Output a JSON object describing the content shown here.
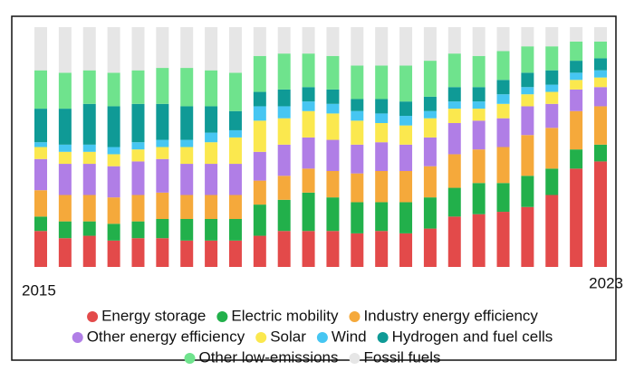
{
  "chart_data": {
    "type": "stacked_bar",
    "categories": [
      "2015",
      null,
      null,
      null,
      null,
      null,
      null,
      null,
      null,
      null,
      null,
      null,
      null,
      null,
      null,
      null,
      null,
      null,
      null,
      null,
      null,
      null,
      null,
      "2023"
    ],
    "series": [
      {
        "name": "Energy storage",
        "color": "#e34a4a",
        "values": [
          15,
          12,
          13,
          11,
          12,
          12,
          11,
          11,
          11,
          13,
          15,
          15,
          15,
          14,
          15,
          14,
          16,
          21,
          22,
          23,
          25,
          30,
          41,
          44
        ]
      },
      {
        "name": "Electric mobility",
        "color": "#22b04b",
        "values": [
          6,
          7,
          6,
          7,
          7,
          8,
          9,
          9,
          9,
          13,
          13,
          16,
          14,
          13,
          12,
          13,
          13,
          12,
          13,
          12,
          13,
          11,
          8,
          7
        ]
      },
      {
        "name": "Industry energy efficiency",
        "color": "#f5a93b",
        "values": [
          11,
          11,
          11,
          11,
          11,
          11,
          10,
          10,
          10,
          10,
          10,
          10,
          11,
          12,
          13,
          13,
          13,
          14,
          14,
          15,
          17,
          17,
          16,
          16
        ]
      },
      {
        "name": "Other energy efficiency",
        "color": "#b07ee6",
        "values": [
          13,
          13,
          13,
          13,
          14,
          14,
          13,
          13,
          13,
          12,
          13,
          13,
          13,
          12,
          12,
          11,
          12,
          13,
          12,
          12,
          12,
          10,
          9,
          8
        ]
      },
      {
        "name": "Solar",
        "color": "#fbe84e",
        "values": [
          5,
          5,
          5,
          5,
          5,
          5,
          7,
          9,
          11,
          13,
          11,
          11,
          11,
          10,
          8,
          8,
          8,
          6,
          5,
          6,
          5,
          5,
          4,
          4
        ]
      },
      {
        "name": "Wind",
        "color": "#46c6f2",
        "values": [
          2,
          3,
          3,
          3,
          3,
          3,
          3,
          4,
          3,
          6,
          5,
          4,
          4,
          4,
          4,
          4,
          3,
          3,
          3,
          4,
          3,
          3,
          3,
          3
        ]
      },
      {
        "name": "Hydrogen and fuel cells",
        "color": "#0f9a96",
        "values": [
          14,
          15,
          17,
          17,
          16,
          15,
          14,
          11,
          8,
          6,
          7,
          6,
          6,
          5,
          6,
          6,
          6,
          6,
          6,
          6,
          6,
          6,
          5,
          5
        ]
      },
      {
        "name": "Other low-emissions",
        "color": "#6fe38d",
        "values": [
          16,
          15,
          14,
          14,
          14,
          15,
          16,
          15,
          16,
          15,
          15,
          14,
          14,
          14,
          14,
          15,
          15,
          14,
          13,
          12,
          11,
          10,
          8,
          7
        ]
      },
      {
        "name": "Fossil fuels",
        "color": "#e6e6e6",
        "values": [
          18,
          19,
          18,
          19,
          18,
          17,
          17,
          18,
          19,
          12,
          11,
          11,
          12,
          16,
          16,
          16,
          14,
          11,
          12,
          10,
          8,
          8,
          6,
          6
        ]
      }
    ]
  }
}
